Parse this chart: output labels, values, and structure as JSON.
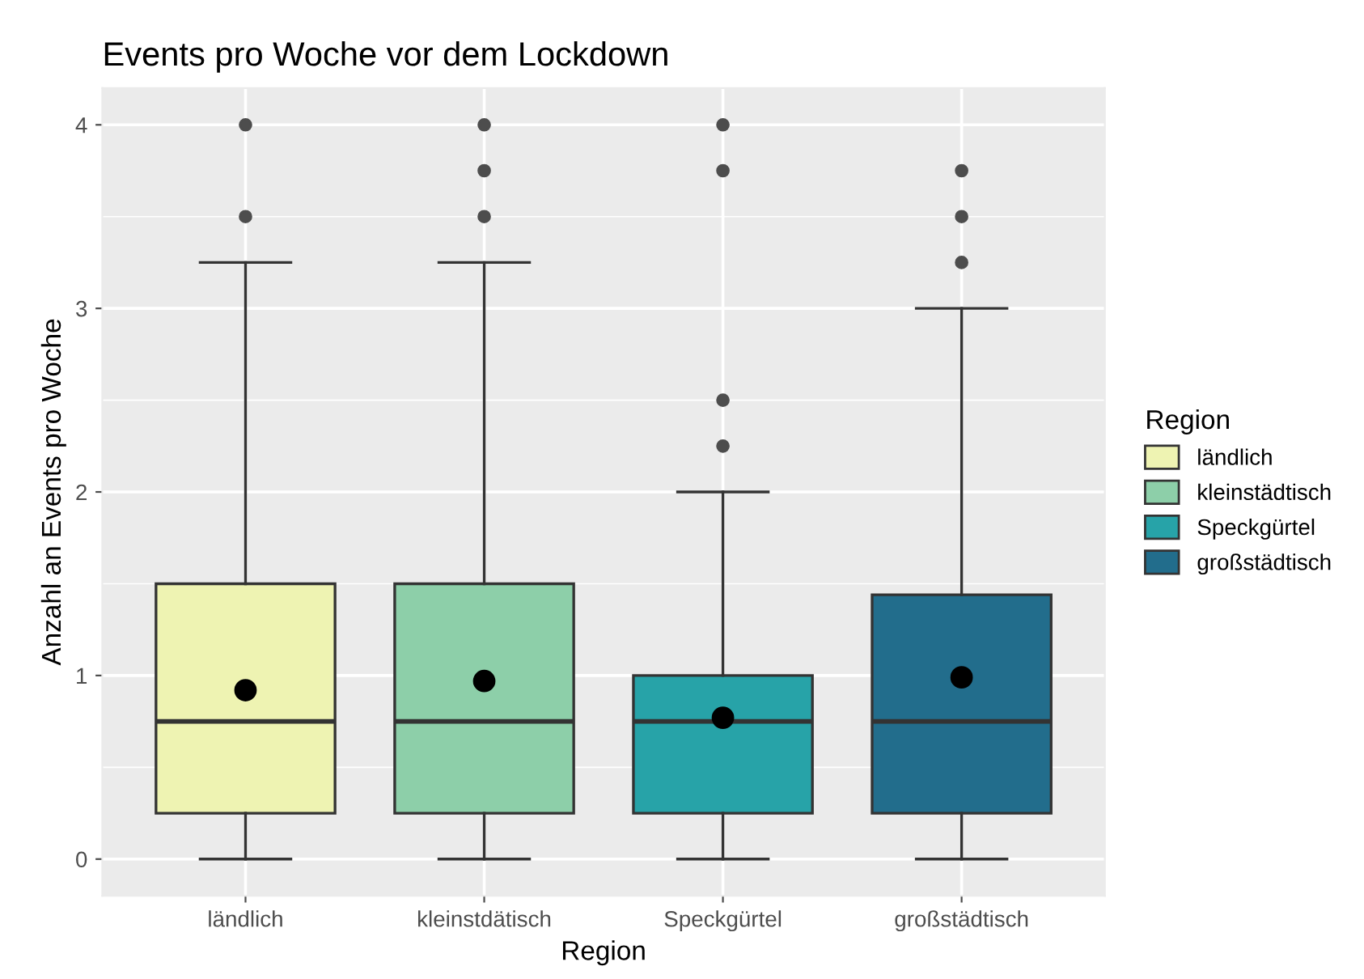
{
  "chart_data": {
    "type": "box",
    "title": "Events pro Woche vor dem Lockdown",
    "xlabel": "Region",
    "ylabel": "Anzahl an Events pro Woche",
    "legend_title": "Region",
    "categories": [
      "ländlich",
      "kleinstdätisch",
      "Speckgürtel",
      "großstädtisch"
    ],
    "series": [
      {
        "name": "ländlich",
        "color": "#eef3b2",
        "boxes": [
          {
            "low": 0,
            "q1": 0.25,
            "median": 0.75,
            "q3": 1.5,
            "high": 3.25,
            "mean": 0.92,
            "outliers": [
              3.5,
              4
            ]
          },
          null,
          null,
          null
        ]
      },
      {
        "name": "kleinstädtisch",
        "color": "#8dcfa9",
        "boxes": [
          null,
          {
            "low": 0,
            "q1": 0.25,
            "median": 0.75,
            "q3": 1.5,
            "high": 3.25,
            "mean": 0.97,
            "outliers": [
              3.5,
              3.75,
              4
            ]
          },
          null,
          null
        ]
      },
      {
        "name": "Speckgürtel",
        "color": "#27a3a8",
        "boxes": [
          null,
          null,
          {
            "low": 0,
            "q1": 0.25,
            "median": 0.75,
            "q3": 1.0,
            "high": 2.0,
            "mean": 0.77,
            "outliers": [
              2.25,
              2.5,
              3.75,
              4
            ]
          },
          null
        ]
      },
      {
        "name": "großstädtisch",
        "color": "#226d8c",
        "boxes": [
          null,
          null,
          null,
          {
            "low": 0,
            "q1": 0.25,
            "median": 0.75,
            "q3": 1.44,
            "high": 3.0,
            "mean": 0.99,
            "outliers": [
              3.25,
              3.5,
              3.75
            ]
          }
        ]
      }
    ],
    "ylim": [
      -0.2,
      4.2
    ],
    "yticks": [
      0,
      1,
      2,
      3,
      4
    ],
    "grid": true,
    "legend": "right"
  }
}
